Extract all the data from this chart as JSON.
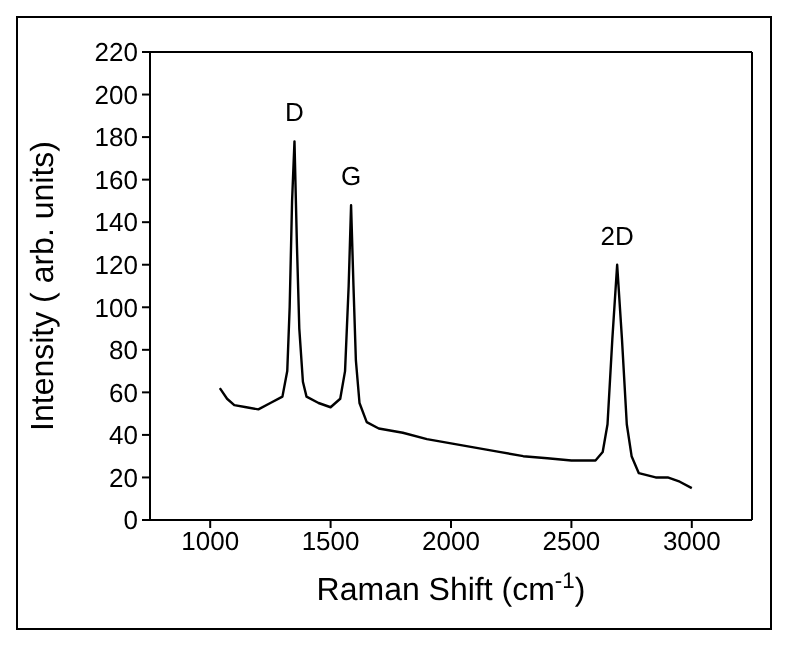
{
  "chart_data": {
    "type": "line",
    "xlabel": "Raman Shift (cm$^{-1}$)",
    "ylabel": "Intensity ( arb. units)",
    "xlim": [
      750,
      3250
    ],
    "xticks": [
      1000,
      1500,
      2000,
      2500,
      3000
    ],
    "ylim": [
      0,
      220
    ],
    "yticks": [
      0,
      20,
      40,
      60,
      80,
      100,
      120,
      140,
      160,
      180,
      200,
      220
    ],
    "grid": false,
    "marker": "none",
    "line_style": "solid",
    "series": [
      {
        "color": "#000000",
        "x": [
          1040,
          1070,
          1100,
          1150,
          1200,
          1250,
          1300,
          1320,
          1330,
          1340,
          1350,
          1360,
          1370,
          1385,
          1400,
          1450,
          1500,
          1540,
          1560,
          1575,
          1585,
          1595,
          1605,
          1620,
          1650,
          1700,
          1800,
          1900,
          2000,
          2100,
          2200,
          2300,
          2400,
          2500,
          2600,
          2630,
          2650,
          2670,
          2690,
          2710,
          2730,
          2750,
          2780,
          2850,
          2900,
          2950,
          3000
        ],
        "values": [
          62,
          57,
          54,
          53,
          52,
          55,
          58,
          70,
          100,
          150,
          178,
          130,
          90,
          65,
          58,
          55,
          53,
          57,
          70,
          110,
          148,
          110,
          75,
          55,
          46,
          43,
          41,
          38,
          36,
          34,
          32,
          30,
          29,
          28,
          28,
          32,
          45,
          85,
          120,
          85,
          45,
          30,
          22,
          20,
          20,
          18,
          15
        ]
      }
    ],
    "annotations": [
      {
        "text": "D",
        "x": 1350,
        "y": 178
      },
      {
        "text": "G",
        "x": 1585,
        "y": 148
      },
      {
        "text": "2D",
        "x": 2690,
        "y": 120
      }
    ]
  }
}
